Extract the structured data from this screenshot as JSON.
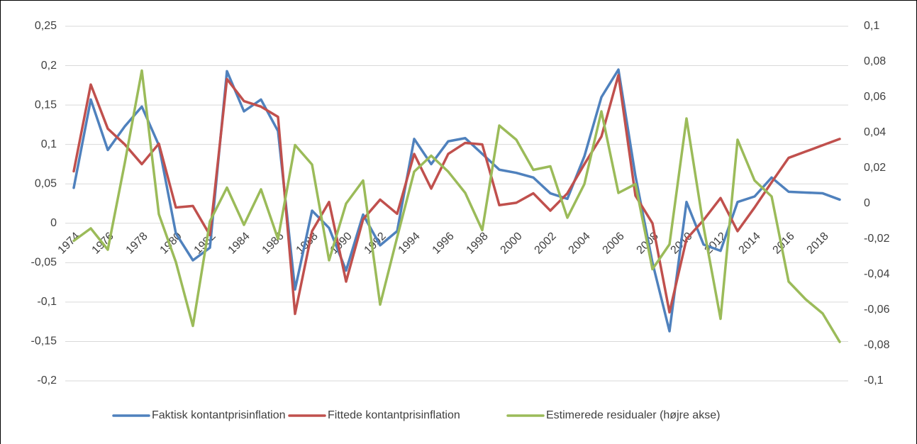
{
  "chart_data": {
    "type": "line",
    "categories": [
      "1974",
      null,
      "1976",
      null,
      "1978",
      null,
      "1980",
      null,
      "1982",
      null,
      "1984",
      null,
      "1986",
      null,
      "1988",
      null,
      "1990",
      null,
      "1992",
      null,
      "1994",
      null,
      "1996",
      null,
      "1998",
      null,
      "2000",
      null,
      "2002",
      null,
      "2004",
      null,
      "2006",
      null,
      "2008",
      null,
      "2010",
      null,
      "2012",
      null,
      "2014",
      null,
      "2016",
      null,
      "2018",
      null
    ],
    "series": [
      {
        "name": "Faktisk kontantprisinflation",
        "color": "#4f81bd",
        "values": [
          0.045,
          0.157,
          0.093,
          0.123,
          0.148,
          0.099,
          -0.013,
          -0.047,
          -0.031,
          0.193,
          0.142,
          0.157,
          0.117,
          -0.084,
          0.016,
          -0.006,
          -0.06,
          0.011,
          -0.028,
          -0.01,
          0.107,
          0.075,
          0.104,
          0.108,
          0.088,
          0.068,
          0.064,
          0.058,
          0.038,
          0.031,
          0.085,
          0.16,
          0.195,
          0.06,
          -0.05,
          -0.137,
          0.027,
          -0.027,
          -0.035,
          0.027,
          0.034,
          0.058,
          0.04,
          0.039,
          0.038,
          0.03
        ]
      },
      {
        "name": "Fittede kontantprisinflation",
        "color": "#c0504d",
        "values": [
          0.066,
          0.176,
          0.12,
          0.1,
          0.075,
          0.101,
          0.02,
          0.022,
          -0.015,
          0.183,
          0.155,
          0.148,
          0.135,
          -0.115,
          -0.01,
          0.027,
          -0.074,
          0.005,
          0.03,
          0.012,
          0.088,
          0.044,
          0.088,
          0.102,
          0.1,
          0.023,
          0.026,
          0.038,
          0.016,
          0.038,
          0.075,
          0.11,
          0.188,
          0.035,
          0.0,
          -0.113,
          -0.02,
          0.004,
          0.032,
          -0.01,
          0.02,
          0.052,
          0.083,
          0.091,
          0.099,
          0.107
        ]
      },
      {
        "name": "Estimerede residualer (højre akse)",
        "color": "#9bbb59",
        "axis": "y2",
        "values": [
          -0.021,
          -0.014,
          -0.026,
          0.023,
          0.075,
          -0.006,
          -0.033,
          -0.069,
          -0.01,
          0.009,
          -0.012,
          0.008,
          -0.02,
          0.033,
          0.022,
          -0.032,
          0,
          0.013,
          -0.057,
          -0.019,
          0.018,
          0.027,
          0.018,
          0.006,
          -0.015,
          0.044,
          0.036,
          0.019,
          0.021,
          -0.008,
          0.011,
          0.052,
          0.006,
          0.011,
          -0.037,
          -0.023,
          0.048,
          -0.013,
          -0.065,
          0.036,
          0.013,
          0.004,
          -0.044,
          -0.054,
          -0.062,
          -0.078
        ]
      }
    ],
    "ylim": [
      -0.2,
      0.25
    ],
    "yticks": [
      {
        "value": -0.2,
        "label": "-0,2"
      },
      {
        "value": -0.15,
        "label": "-0,15"
      },
      {
        "value": -0.1,
        "label": "-0,1"
      },
      {
        "value": -0.05,
        "label": "-0,05"
      },
      0,
      {
        "value": 0.05,
        "label": "0,05"
      },
      {
        "value": 0.1,
        "label": "0,1"
      },
      {
        "value": 0.15,
        "label": "0,15"
      },
      {
        "value": 0.2,
        "label": "0,2"
      },
      {
        "value": 0.25,
        "label": "0,25"
      }
    ],
    "y2lim": [
      -0.1,
      0.1
    ],
    "y2ticks": [
      {
        "value": -0.1,
        "label": "-0,1"
      },
      {
        "value": -0.08,
        "label": "-0,08"
      },
      {
        "value": -0.06,
        "label": "-0,06"
      },
      {
        "value": -0.04,
        "label": "-0,04"
      },
      {
        "value": -0.02,
        "label": "-0,02"
      },
      0,
      {
        "value": 0.02,
        "label": "0,02"
      },
      {
        "value": 0.04,
        "label": "0,04"
      },
      {
        "value": 0.06,
        "label": "0,06"
      },
      {
        "value": 0.08,
        "label": "0,08"
      },
      {
        "value": 0.1,
        "label": "0,1"
      }
    ],
    "grid": true,
    "legend": "bottom"
  }
}
